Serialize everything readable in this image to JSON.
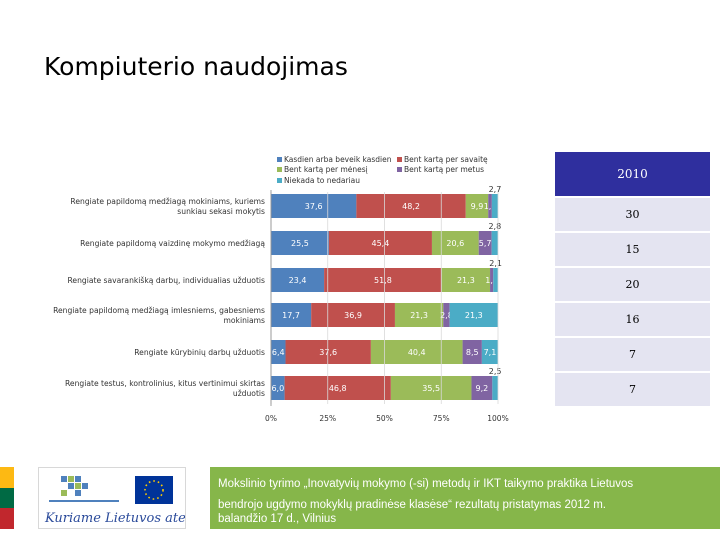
{
  "title": "Kompiuterio naudojimas",
  "chart_data": {
    "type": "bar",
    "orientation": "horizontal",
    "stacked": "percent",
    "categories": [
      [
        "Rengiate papildomą medžiagą mokiniams, kuriems",
        "sunkiau sekasi mokytis"
      ],
      [
        "Rengiate papildomą vaizdinę mokymo medžiagą"
      ],
      [
        "Rengiate savarankišką darbų, individualias užduotis"
      ],
      [
        "Rengiate papildomą medžiagą imlesniems, gabesniems",
        "mokiniams"
      ],
      [
        "Rengiate kūrybinių darbų užduotis"
      ],
      [
        "Rengiate testus, kontrolinius, kitus vertinimui skirtas",
        "užduotis"
      ]
    ],
    "series": [
      {
        "name": "Kasdien arba beveik kasdien",
        "color": "#4f81bd",
        "values": [
          37.6,
          25.5,
          23.4,
          17.7,
          6.4,
          6.0
        ]
      },
      {
        "name": "Bent kartą per savaitę",
        "color": "#c0504d",
        "values": [
          48.2,
          45.4,
          51.8,
          36.9,
          37.6,
          46.8
        ]
      },
      {
        "name": "Bent kartą per mėnesį",
        "color": "#9bbb59",
        "values": [
          9.9,
          20.6,
          21.3,
          21.3,
          40.4,
          35.5
        ]
      },
      {
        "name": "Bent kartą per metus",
        "color": "#8064a2",
        "values": [
          1.6,
          5.7,
          1.4,
          2.8,
          8.5,
          9.2
        ]
      },
      {
        "name": "Niekada to nedariau",
        "color": "#4bacc6",
        "values": [
          2.7,
          2.8,
          2.1,
          21.3,
          7.1,
          2.5
        ]
      }
    ],
    "segment_labels": [
      [
        "37,6",
        "48,2",
        "9,9",
        "1,6",
        "2,7"
      ],
      [
        "25,5",
        "45,4",
        "20,6",
        "5,7",
        "2,8"
      ],
      [
        "23,4",
        "51,8",
        "21,3",
        "1,4",
        "2,1"
      ],
      [
        "17,7",
        "36,9",
        "21,3",
        "2,8",
        "21,3"
      ],
      [
        "6,4",
        "37,6",
        "40,4",
        "8,5",
        "7,1"
      ],
      [
        "6,0",
        "46,8",
        "35,5",
        "9,2",
        "2,5"
      ]
    ],
    "xlim": [
      0,
      100
    ],
    "x_ticks": [
      "0%",
      "25%",
      "50%",
      "75%",
      "100%"
    ],
    "legend_position": "top"
  },
  "year_table": {
    "header": "2010",
    "values": [
      "30",
      "15",
      "20",
      "16",
      "7",
      "7"
    ]
  },
  "footer": {
    "line1": "Mokslinio tyrimo „Inovatyvių mokymo (-si) metodų ir IKT taikymo praktika Lietuvos",
    "line2": "bendrojo ugdymo mokyklų pradinėse klasėse“ rezultatų pristatymas 2012 m.",
    "line3": "balandžio 17 d., Vilnius"
  },
  "logo": {
    "text": "Kuriame Lietuvos ateitį",
    "color": "#2a4a9a"
  },
  "flag_colors": [
    "#fdb913",
    "#006a44",
    "#c1272d"
  ]
}
